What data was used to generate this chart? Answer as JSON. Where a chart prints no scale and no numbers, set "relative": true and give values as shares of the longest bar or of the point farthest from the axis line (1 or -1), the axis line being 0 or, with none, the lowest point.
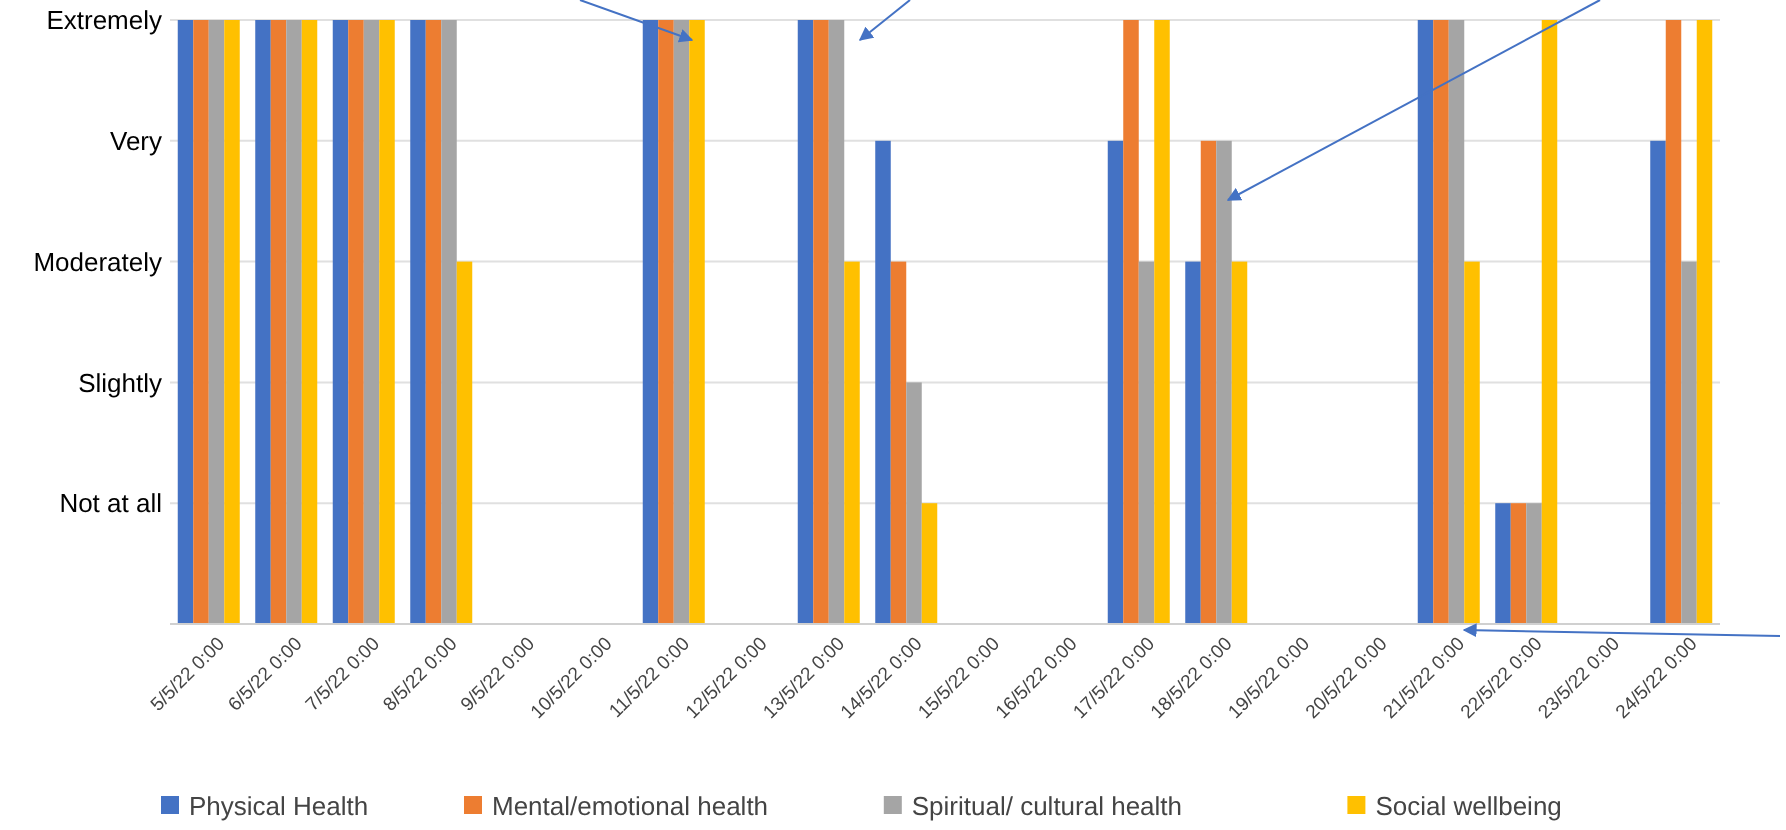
{
  "chart_data": {
    "type": "bar",
    "relative": true,
    "categories": [
      "5/5/22 0:00",
      "6/5/22 0:00",
      "7/5/22 0:00",
      "8/5/22 0:00",
      "9/5/22 0:00",
      "10/5/22 0:00",
      "11/5/22 0:00",
      "12/5/22 0:00",
      "13/5/22 0:00",
      "14/5/22 0:00",
      "15/5/22 0:00",
      "16/5/22 0:00",
      "17/5/22 0:00",
      "18/5/22 0:00",
      "19/5/22 0:00",
      "20/5/22 0:00",
      "21/5/22 0:00",
      "22/5/22 0:00",
      "23/5/22 0:00",
      "24/5/22 0:00"
    ],
    "series": [
      {
        "name": "Physical Health",
        "color": "#4472c4",
        "values": [
          1,
          1,
          1,
          1,
          null,
          null,
          1,
          null,
          1,
          0.8,
          null,
          null,
          0.8,
          0.6,
          null,
          null,
          1,
          0.2,
          null,
          0.8
        ]
      },
      {
        "name": "Mental/emotional health",
        "color": "#ed7d31",
        "values": [
          1,
          1,
          1,
          1,
          null,
          null,
          1,
          null,
          1,
          0.6,
          null,
          null,
          1,
          0.8,
          null,
          null,
          1,
          0.2,
          null,
          1
        ]
      },
      {
        "name": "Spiritual/ cultural health",
        "color": "#a5a5a5",
        "values": [
          1,
          1,
          1,
          1,
          null,
          null,
          1,
          null,
          1,
          0.4,
          null,
          null,
          0.6,
          0.8,
          null,
          null,
          1,
          0.2,
          null,
          0.6
        ]
      },
      {
        "name": "Social wellbeing",
        "color": "#ffc000",
        "values": [
          1,
          1,
          1,
          0.6,
          null,
          null,
          1,
          null,
          0.6,
          0.2,
          null,
          null,
          1,
          0.6,
          null,
          null,
          0.6,
          1,
          null,
          1
        ]
      }
    ],
    "annotations": [
      "Not at all",
      "Slightly",
      "Moderately",
      "Very",
      "Extremely"
    ],
    "grid": true,
    "legend": "bottom"
  }
}
